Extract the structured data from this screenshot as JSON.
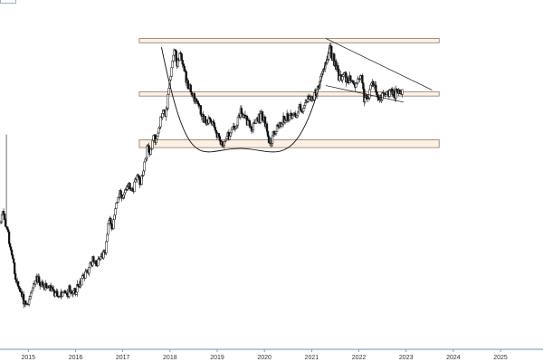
{
  "colors": {
    "up": "#ffffff",
    "down": "#111111",
    "wick": "#111111",
    "zone_fill": "#fdf1e4",
    "zone_stroke": "#8a7a6a",
    "line": "#111111",
    "axis": "#6f8fb0",
    "text": "#333333"
  },
  "chart_data": {
    "type": "candlestick",
    "title": "",
    "xlabel": "",
    "ylabel": "",
    "x_range": [
      2014.4,
      2025.9
    ],
    "y_range": [
      0,
      40
    ],
    "x_ticks": [
      {
        "value": 2015,
        "label": "2015"
      },
      {
        "value": 2016,
        "label": "2016"
      },
      {
        "value": 2017,
        "label": "2017"
      },
      {
        "value": 2018,
        "label": "2018"
      },
      {
        "value": 2019,
        "label": "2019"
      },
      {
        "value": 2020,
        "label": "2020"
      },
      {
        "value": 2021,
        "label": "2021"
      },
      {
        "value": 2022,
        "label": "2022"
      },
      {
        "value": 2023,
        "label": "2023"
      },
      {
        "value": 2024,
        "label": "2024"
      },
      {
        "value": 2025,
        "label": "2025"
      }
    ],
    "price_path": [
      [
        2014.42,
        14.5
      ],
      [
        2014.47,
        16.2
      ],
      [
        2014.52,
        14.0
      ],
      [
        2014.58,
        12.8
      ],
      [
        2014.65,
        11.0
      ],
      [
        2014.72,
        8.3
      ],
      [
        2014.8,
        6.9
      ],
      [
        2014.9,
        5.7
      ],
      [
        2014.97,
        5.2
      ],
      [
        2015.05,
        6.2
      ],
      [
        2015.15,
        8.1
      ],
      [
        2015.25,
        7.6
      ],
      [
        2015.35,
        6.9
      ],
      [
        2015.45,
        7.3
      ],
      [
        2015.55,
        6.3
      ],
      [
        2015.7,
        6.2
      ],
      [
        2015.85,
        6.6
      ],
      [
        2015.95,
        6.5
      ],
      [
        2016.05,
        6.9
      ],
      [
        2016.15,
        8.0
      ],
      [
        2016.25,
        9.0
      ],
      [
        2016.35,
        10.0
      ],
      [
        2016.45,
        9.8
      ],
      [
        2016.55,
        11.0
      ],
      [
        2016.62,
        10.8
      ],
      [
        2016.68,
        13.5
      ],
      [
        2016.72,
        15.2
      ],
      [
        2016.78,
        13.6
      ],
      [
        2016.85,
        16.5
      ],
      [
        2016.93,
        18.0
      ],
      [
        2017.0,
        17.2
      ],
      [
        2017.1,
        19.0
      ],
      [
        2017.2,
        18.2
      ],
      [
        2017.3,
        19.8
      ],
      [
        2017.38,
        19.1
      ],
      [
        2017.45,
        21.0
      ],
      [
        2017.52,
        23.0
      ],
      [
        2017.58,
        22.5
      ],
      [
        2017.65,
        24.2
      ],
      [
        2017.72,
        23.8
      ],
      [
        2017.78,
        26.0
      ],
      [
        2017.85,
        27.6
      ],
      [
        2017.92,
        26.8
      ],
      [
        2017.98,
        30.0
      ],
      [
        2018.05,
        33.0
      ],
      [
        2018.1,
        34.2
      ],
      [
        2018.16,
        32.8
      ],
      [
        2018.22,
        33.8
      ],
      [
        2018.3,
        32.2
      ],
      [
        2018.38,
        30.3
      ],
      [
        2018.45,
        29.6
      ],
      [
        2018.52,
        28.5
      ],
      [
        2018.6,
        28.0
      ],
      [
        2018.7,
        26.6
      ],
      [
        2018.8,
        26.2
      ],
      [
        2018.9,
        25.8
      ],
      [
        2018.97,
        24.6
      ],
      [
        2019.05,
        24.5
      ],
      [
        2019.12,
        23.2
      ],
      [
        2019.2,
        24.2
      ],
      [
        2019.3,
        25.0
      ],
      [
        2019.4,
        25.8
      ],
      [
        2019.5,
        27.3
      ],
      [
        2019.58,
        26.6
      ],
      [
        2019.65,
        25.9
      ],
      [
        2019.75,
        25.2
      ],
      [
        2019.85,
        26.5
      ],
      [
        2019.95,
        26.7
      ],
      [
        2020.05,
        25.6
      ],
      [
        2020.1,
        23.0
      ],
      [
        2020.18,
        24.6
      ],
      [
        2020.25,
        25.3
      ],
      [
        2020.35,
        25.9
      ],
      [
        2020.45,
        26.3
      ],
      [
        2020.55,
        26.6
      ],
      [
        2020.65,
        26.7
      ],
      [
        2020.75,
        27.4
      ],
      [
        2020.82,
        27.8
      ],
      [
        2020.88,
        28.3
      ],
      [
        2020.95,
        28.9
      ],
      [
        2021.02,
        28.6
      ],
      [
        2021.1,
        29.6
      ],
      [
        2021.18,
        30.9
      ],
      [
        2021.25,
        31.6
      ],
      [
        2021.32,
        32.8
      ],
      [
        2021.38,
        34.3
      ],
      [
        2021.45,
        33.5
      ],
      [
        2021.52,
        32.1
      ],
      [
        2021.6,
        31.0
      ],
      [
        2021.68,
        31.8
      ],
      [
        2021.75,
        30.6
      ],
      [
        2021.82,
        31.1
      ],
      [
        2021.9,
        29.9
      ],
      [
        2021.98,
        30.7
      ],
      [
        2022.05,
        31.2
      ],
      [
        2022.12,
        28.5
      ],
      [
        2022.2,
        29.2
      ],
      [
        2022.28,
        30.8
      ],
      [
        2022.36,
        29.4
      ],
      [
        2022.44,
        28.7
      ],
      [
        2022.52,
        29.4
      ],
      [
        2022.6,
        29.0
      ],
      [
        2022.68,
        29.5
      ],
      [
        2022.76,
        29.1
      ],
      [
        2022.84,
        29.4
      ],
      [
        2022.92,
        29.6
      ]
    ],
    "overlays": {
      "zones": [
        {
          "x_start": 2017.35,
          "x_end": 2023.7,
          "y_low": 35.1,
          "y_high": 35.6
        },
        {
          "x_start": 2017.35,
          "x_end": 2023.7,
          "y_low": 29.0,
          "y_high": 29.5
        },
        {
          "x_start": 2017.35,
          "x_end": 2023.7,
          "y_low": 23.1,
          "y_high": 24.0
        }
      ],
      "cup_arc": {
        "x_start": 2017.82,
        "x_mid": 2019.48,
        "x_end": 2021.38,
        "y_top": 34.6,
        "y_bottom": 23.0
      },
      "channel_lines": [
        {
          "x1": 2021.3,
          "y1": 35.6,
          "x2": 2023.55,
          "y2": 29.7
        },
        {
          "x1": 2021.3,
          "y1": 30.2,
          "x2": 2022.95,
          "y2": 28.3
        }
      ]
    }
  }
}
